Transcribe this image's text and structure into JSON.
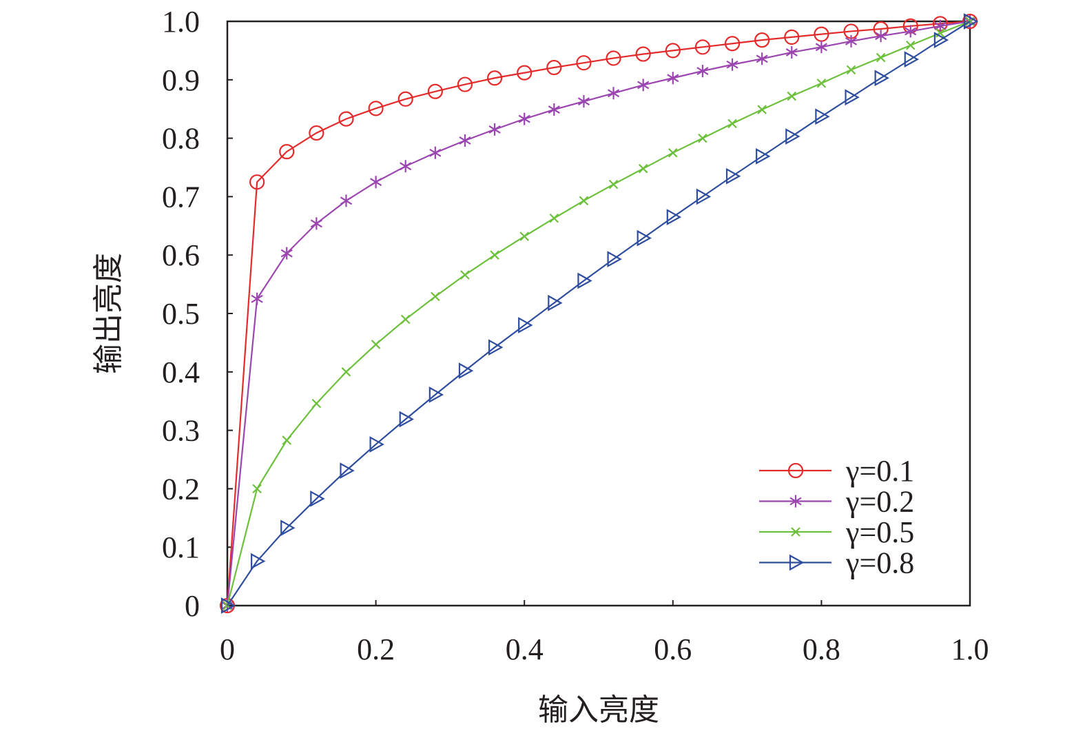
{
  "chart_data": {
    "type": "line",
    "title": "",
    "xlabel": "输入亮度",
    "ylabel": "输出亮度",
    "xlim": [
      0,
      1.0
    ],
    "ylim": [
      0,
      1.0
    ],
    "xticks": [
      "0",
      "0.2",
      "0.4",
      "0.6",
      "0.8",
      "1.0"
    ],
    "yticks": [
      "0",
      "0.1",
      "0.2",
      "0.3",
      "0.4",
      "0.5",
      "0.6",
      "0.7",
      "0.8",
      "0.9",
      "1.0"
    ],
    "grid": false,
    "legend_position": "bottom-right",
    "x": [
      0,
      0.04,
      0.08,
      0.12,
      0.16,
      0.2,
      0.24,
      0.28,
      0.32,
      0.36,
      0.4,
      0.44,
      0.48,
      0.52,
      0.56,
      0.6,
      0.64,
      0.68,
      0.72,
      0.76,
      0.8,
      0.84,
      0.88,
      0.92,
      0.96,
      1.0
    ],
    "series": [
      {
        "name": "γ=0.1",
        "color": "#e52a2c",
        "marker": "circle",
        "values": [
          0,
          0.725,
          0.777,
          0.809,
          0.833,
          0.851,
          0.867,
          0.88,
          0.892,
          0.903,
          0.912,
          0.921,
          0.929,
          0.937,
          0.944,
          0.95,
          0.956,
          0.962,
          0.968,
          0.973,
          0.978,
          0.983,
          0.987,
          0.992,
          0.996,
          1.0
        ]
      },
      {
        "name": "γ=0.2",
        "color": "#9b45b0",
        "marker": "asterisk",
        "values": [
          0,
          0.525,
          0.603,
          0.654,
          0.693,
          0.725,
          0.752,
          0.775,
          0.796,
          0.815,
          0.833,
          0.849,
          0.863,
          0.877,
          0.891,
          0.903,
          0.915,
          0.926,
          0.936,
          0.947,
          0.956,
          0.966,
          0.975,
          0.983,
          0.992,
          1.0
        ]
      },
      {
        "name": "γ=0.5",
        "color": "#6cc03c",
        "marker": "x",
        "values": [
          0,
          0.2,
          0.283,
          0.346,
          0.4,
          0.447,
          0.49,
          0.529,
          0.566,
          0.6,
          0.632,
          0.663,
          0.693,
          0.721,
          0.748,
          0.775,
          0.8,
          0.825,
          0.849,
          0.872,
          0.894,
          0.917,
          0.938,
          0.959,
          0.98,
          1.0
        ]
      },
      {
        "name": "γ=0.8",
        "color": "#2e4d9e",
        "marker": "triangle-right",
        "values": [
          0,
          0.076,
          0.133,
          0.183,
          0.231,
          0.276,
          0.319,
          0.361,
          0.402,
          0.442,
          0.48,
          0.518,
          0.556,
          0.593,
          0.629,
          0.665,
          0.7,
          0.735,
          0.769,
          0.803,
          0.837,
          0.87,
          0.903,
          0.935,
          0.968,
          1.0
        ]
      }
    ]
  }
}
